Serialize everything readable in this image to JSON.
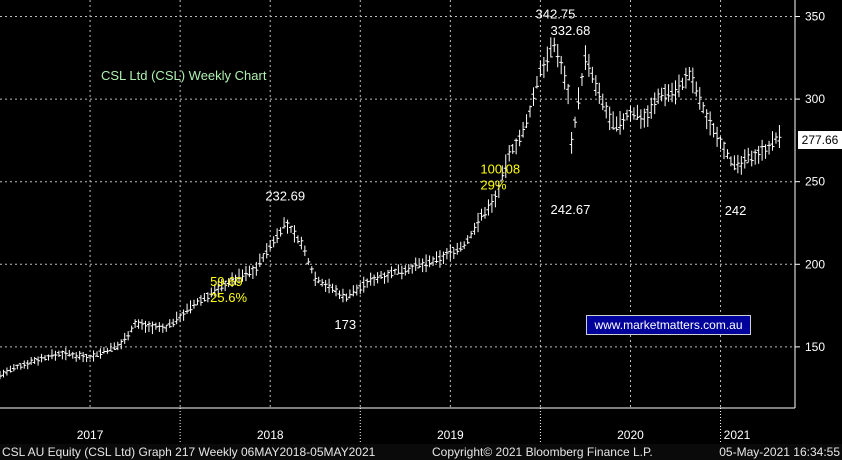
{
  "chart_title": "CSL Ltd (CSL) Weekly Chart",
  "watermark": "www.marketmatters.com.au",
  "current_price_label": "277.66",
  "footer": {
    "left": "CSL AU Equity (CSL Ltd) Graph 217  Weekly 06MAY2018-05MAY2021",
    "mid": "Copyright© 2021 Bloomberg Finance L.P.",
    "right": "05-May-2021 16:34:55"
  },
  "colors": {
    "background": "#000000",
    "grid": "#c8c8c8",
    "bars": "#ffffff",
    "title": "#aef0b0",
    "highlight": "#ffff00",
    "watermark_bg": "#00009a"
  },
  "chart_data": {
    "type": "line",
    "style": "weekly-ohlc-bars",
    "x_axis": {
      "tick_labels": [
        "2017",
        "2018",
        "2019",
        "2020",
        "2021"
      ],
      "range": [
        "2017-01",
        "2021-05"
      ]
    },
    "y_axis": {
      "position": "right",
      "ticks": [
        150,
        200,
        250,
        300,
        350
      ],
      "ylim": [
        113,
        360
      ]
    },
    "grid": true,
    "series": [
      {
        "x": [
          "2017-01",
          "2017-03",
          "2017-05",
          "2017-07",
          "2017-09",
          "2017-10",
          "2017-12",
          "2018-02",
          "2018-04",
          "2018-06",
          "2018-08",
          "2018-09",
          "2018-10",
          "2018-12",
          "2019-02",
          "2019-04",
          "2019-06",
          "2019-08",
          "2019-09",
          "2019-10",
          "2019-11",
          "2019-12",
          "2020-01",
          "2020-02",
          "2020-03",
          "2020-03",
          "2020-04",
          "2020-05",
          "2020-06",
          "2020-07",
          "2020-08",
          "2020-09",
          "2020-10",
          "2020-11",
          "2020-12",
          "2021-01",
          "2021-02",
          "2021-03",
          "2021-04",
          "2021-05"
        ],
        "values": [
          133,
          141,
          146,
          144,
          151,
          164,
          161,
          176,
          188,
          197,
          225,
          214,
          192,
          180,
          192,
          197,
          202,
          212,
          228,
          240,
          268,
          282,
          318,
          333,
          300,
          270,
          325,
          300,
          282,
          292,
          289,
          303,
          305,
          315,
          290,
          275,
          258,
          265,
          270,
          277.66
        ]
      }
    ],
    "annotations": [
      {
        "label": "232.69",
        "x": "2018-08",
        "y": 232.69
      },
      {
        "label": "173",
        "x": "2018-12",
        "y": 173
      },
      {
        "label": "342.75",
        "x": "2020-02",
        "y": 342.75
      },
      {
        "label": "332.68",
        "x": "2020-03",
        "y": 332.68
      },
      {
        "label": "242.67",
        "x": "2020-03",
        "y": 242.67
      },
      {
        "label": "242",
        "x": "2021-02",
        "y": 242
      }
    ],
    "highlight_annotations": [
      {
        "lines": [
          "59.69",
          "25.6%"
        ],
        "x": "2018-03",
        "y": 187
      },
      {
        "lines": [
          "100.08",
          "29%"
        ],
        "x": "2019-09",
        "y": 255
      }
    ]
  }
}
